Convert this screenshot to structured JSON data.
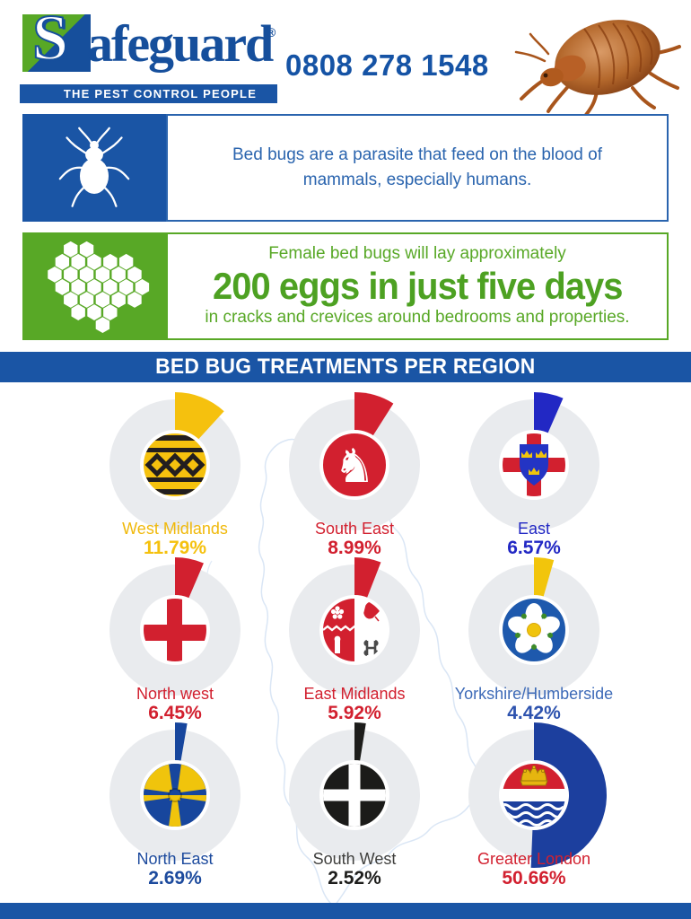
{
  "header": {
    "logo": {
      "initial": "S",
      "rest": "afeguard",
      "registered": "®",
      "tagline": "THE PEST CONTROL PEOPLE"
    },
    "phone": "0808 278 1548"
  },
  "facts": [
    {
      "text": "Bed bugs are a parasite that feed on the blood of mammals, especially humans."
    },
    {
      "line1": "Female bed bugs will lay approximately",
      "highlight": "200 eggs in just five days",
      "line2": "in cracks and crevices around bedrooms and properties."
    }
  ],
  "section_title": "BED BUG TREATMENTS PER REGION",
  "icons": {
    "fact_bug": "white bed-bug silhouette on blue square",
    "fact_eggs": "white honeycomb cluster on green square",
    "header_photo": "bed bug photo illustration"
  },
  "colors": {
    "brand_blue": "#1a55a5",
    "brand_green": "#58a826",
    "donut_grey": "#e9ebee"
  },
  "chart_data": {
    "type": "pie",
    "title": "BED BUG TREATMENTS PER REGION",
    "legend_position": "below each donut",
    "regions": [
      {
        "name": "West Midlands",
        "value": 11.79,
        "display": "11.79%",
        "color": "#f5c10e",
        "label_color": "#f0b90c"
      },
      {
        "name": "South East",
        "value": 8.99,
        "display": "8.99%",
        "color": "#d2202f"
      },
      {
        "name": "East",
        "value": 6.57,
        "display": "6.57%",
        "color": "#2228c4"
      },
      {
        "name": "North west",
        "value": 6.45,
        "display": "6.45%",
        "color": "#d2202f"
      },
      {
        "name": "East Midlands",
        "value": 5.92,
        "display": "5.92%",
        "color": "#d2202f"
      },
      {
        "name": "Yorkshire/Humberside",
        "value": 4.42,
        "display": "4.42%",
        "color": "#f2c50c",
        "label_color": "#3e6bb8",
        "value_color": "#2d52ae"
      },
      {
        "name": "North East",
        "value": 2.69,
        "display": "2.69%",
        "color": "#17469d",
        "label_color": "#1c4a9d",
        "value_color": "#1c4a9d"
      },
      {
        "name": "South West",
        "value": 2.52,
        "display": "2.52%",
        "color": "#1d1d1b",
        "label_color": "#3f3f3d",
        "value_color": "#1d1d1b"
      },
      {
        "name": "Greater London",
        "value": 50.66,
        "display": "50.66%",
        "color": "#1c3f9e",
        "label_color": "#d2202f",
        "value_color": "#d2202f"
      }
    ]
  }
}
